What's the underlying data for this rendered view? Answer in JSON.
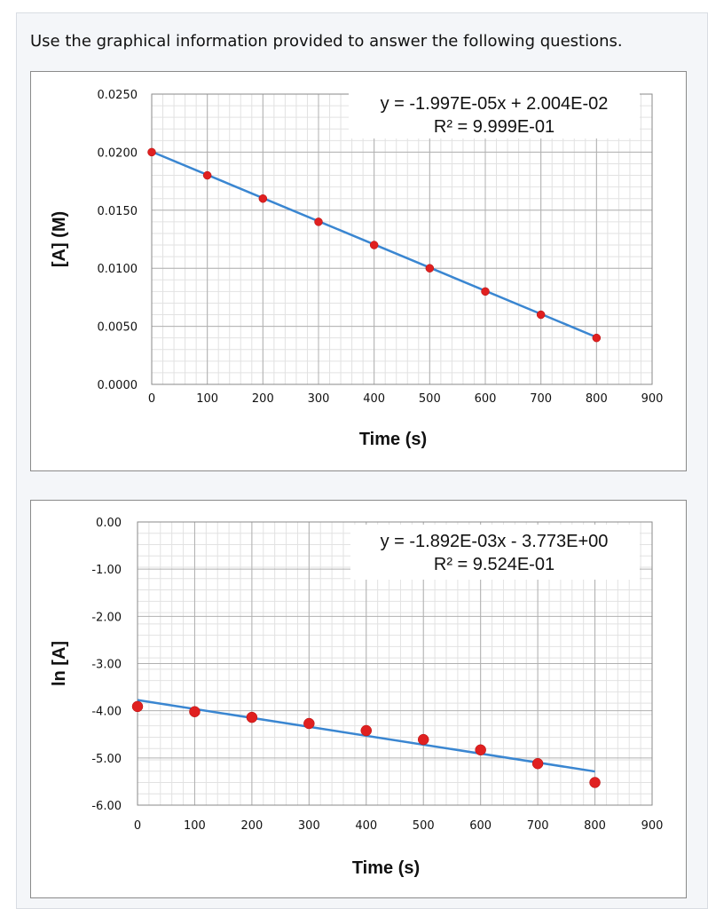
{
  "prompt": "Use the graphical information provided to answer the following questions.",
  "colors": {
    "line": "#3a86d1",
    "marker": "#e02020",
    "grid_major": "#b0b0b0",
    "grid_minor": "#e2e2e2"
  },
  "chart_data": [
    {
      "type": "scatter",
      "xlabel": "Time (s)",
      "ylabel": "[A] (M)",
      "xlim": [
        0,
        900
      ],
      "ylim": [
        0.0,
        0.025
      ],
      "x_ticks": [
        "0",
        "100",
        "200",
        "300",
        "400",
        "500",
        "600",
        "700",
        "800",
        "900"
      ],
      "y_ticks": [
        "0.0000",
        "0.0050",
        "0.0100",
        "0.0150",
        "0.0200",
        "0.0250"
      ],
      "grid": true,
      "legend": "none",
      "series": [
        {
          "x": [
            0,
            100,
            200,
            300,
            400,
            500,
            600,
            700,
            800
          ],
          "y": [
            0.02,
            0.018,
            0.016,
            0.014,
            0.012,
            0.01,
            0.008,
            0.006,
            0.004
          ]
        }
      ],
      "trendline": {
        "slope": -1.997e-05,
        "intercept": 0.02004,
        "x_range": [
          0,
          800
        ]
      },
      "annotation": {
        "equation": "y = -1.997E-05x + 2.004E-02",
        "r2": "R² = 9.999E-01"
      }
    },
    {
      "type": "scatter",
      "xlabel": "Time (s)",
      "ylabel": "ln [A]",
      "xlim": [
        0,
        900
      ],
      "ylim": [
        -6.0,
        0.0
      ],
      "x_ticks": [
        "0",
        "100",
        "200",
        "300",
        "400",
        "500",
        "600",
        "700",
        "800",
        "900"
      ],
      "y_ticks": [
        "-6.00",
        "-5.00",
        "-4.00",
        "-3.00",
        "-2.00",
        "-1.00",
        "0.00"
      ],
      "grid": true,
      "legend": "none",
      "series": [
        {
          "x": [
            0,
            100,
            200,
            300,
            400,
            500,
            600,
            700,
            800
          ],
          "y": [
            -3.91,
            -4.02,
            -4.14,
            -4.27,
            -4.42,
            -4.61,
            -4.83,
            -5.12,
            -5.52
          ]
        }
      ],
      "trendline": {
        "slope": -0.001892,
        "intercept": -3.773,
        "x_range": [
          0,
          800
        ]
      },
      "annotation": {
        "equation": "y = -1.892E-03x - 3.773E+00",
        "r2": "R² = 9.524E-01"
      }
    }
  ]
}
